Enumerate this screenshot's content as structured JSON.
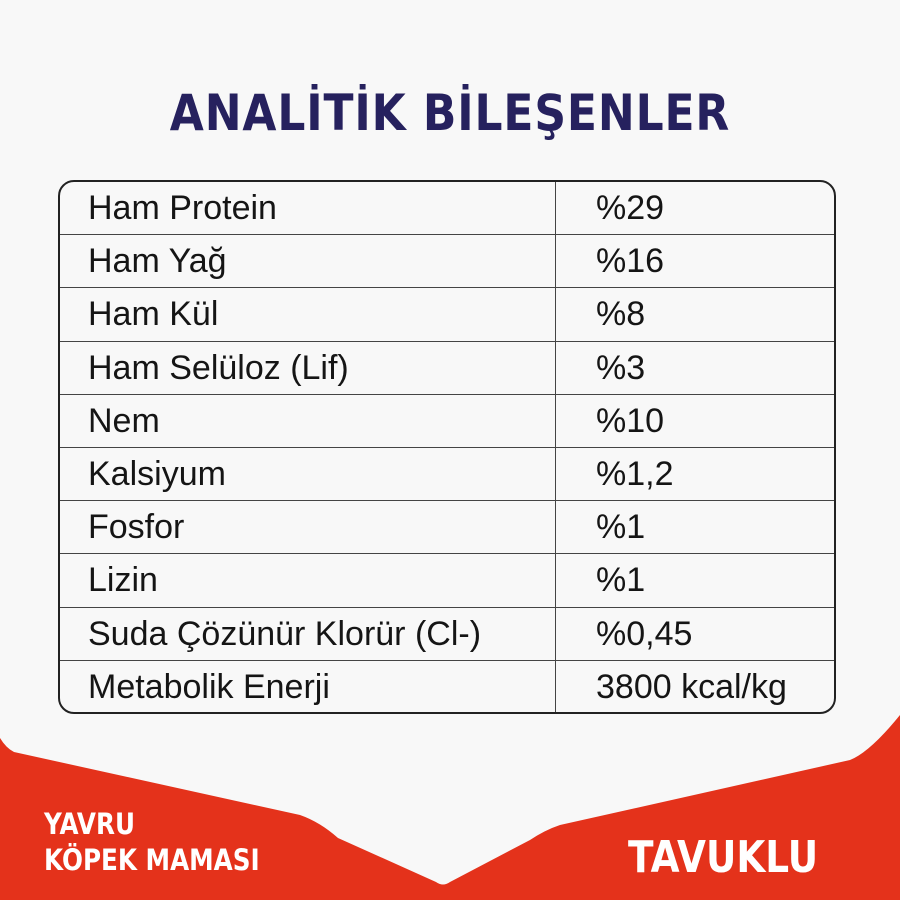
{
  "title": "ANALİTİK BİLEŞENLER",
  "table": {
    "rows": [
      {
        "name": "Ham Protein",
        "value": "%29"
      },
      {
        "name": "Ham Yağ",
        "value": "%16"
      },
      {
        "name": "Ham Kül",
        "value": "%8"
      },
      {
        "name": "Ham Selüloz (Lif)",
        "value": "%3"
      },
      {
        "name": "Nem",
        "value": "%10"
      },
      {
        "name": "Kalsiyum",
        "value": "%1,2"
      },
      {
        "name": "Fosfor",
        "value": "%1"
      },
      {
        "name": "Lizin",
        "value": "%1"
      },
      {
        "name": "Suda Çözünür Klorür (Cl-)",
        "value": "%0,45"
      },
      {
        "name": "Metabolik Enerji",
        "value": "3800 kcal/kg"
      }
    ]
  },
  "footer": {
    "line1": "YAVRU",
    "line2": "KÖPEK MAMASI",
    "flavor": "TAVUKLU"
  },
  "colors": {
    "title": "#26215e",
    "accent_red": "#e4321b",
    "background": "#f8f8f8"
  }
}
